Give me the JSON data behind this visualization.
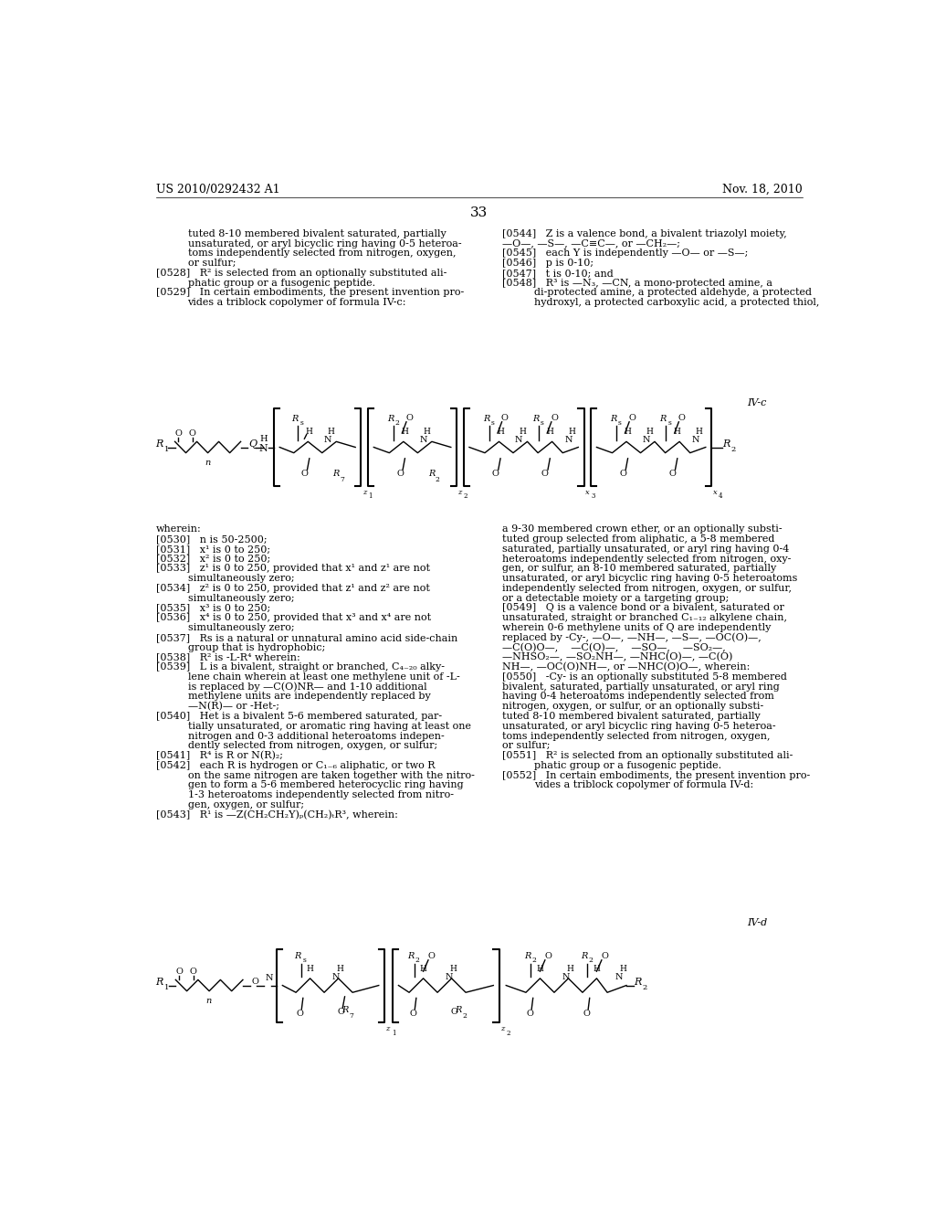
{
  "background_color": "#ffffff",
  "page_number": "33",
  "header_left": "US 2010/0292432 A1",
  "header_right": "Nov. 18, 2010",
  "figsize": [
    10.24,
    13.2
  ],
  "dpi": 100
}
